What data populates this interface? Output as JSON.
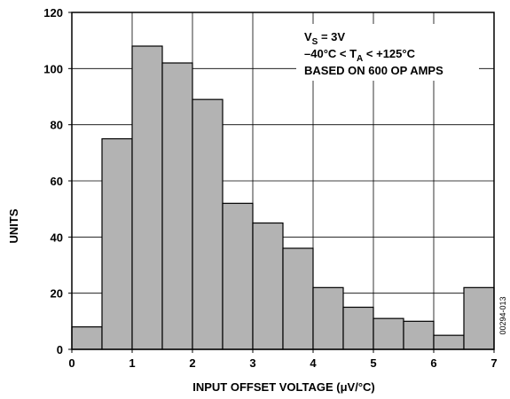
{
  "chart_data": {
    "type": "bar",
    "histogram": true,
    "bin_width": 0.5,
    "bin_starts": [
      0,
      0.5,
      1,
      1.5,
      2,
      2.5,
      3,
      3.5,
      4,
      4.5,
      5,
      5.5,
      6,
      6.5
    ],
    "values": [
      8,
      75,
      108,
      102,
      89,
      52,
      45,
      36,
      22,
      15,
      11,
      10,
      5,
      22
    ],
    "xlabel": "INPUT OFFSET VOLTAGE (μV/°C)",
    "ylabel": "UNITS",
    "xlim": [
      0,
      7
    ],
    "ylim": [
      0,
      120
    ],
    "x_ticks": [
      0,
      1,
      2,
      3,
      4,
      5,
      6,
      7
    ],
    "y_ticks": [
      0,
      20,
      40,
      60,
      80,
      100,
      120
    ],
    "x_tick_labels": [
      "0",
      "1",
      "2",
      "3",
      "4",
      "5",
      "6",
      "7"
    ],
    "y_tick_labels": [
      "0",
      "20",
      "40",
      "60",
      "80",
      "100",
      "120"
    ],
    "grid": true,
    "bar_color": "#b3b3b3",
    "bar_edge_color": "#000000",
    "legend": {
      "placement": "top-right",
      "line1": {
        "main": "V",
        "sub": "S",
        "rest": " = 3V"
      },
      "line2": {
        "main": "–40°C < T",
        "sub": "A",
        "rest": " < +125°C"
      },
      "line3": "BASED ON 600 OP AMPS"
    },
    "figure_code": "00294-013"
  }
}
